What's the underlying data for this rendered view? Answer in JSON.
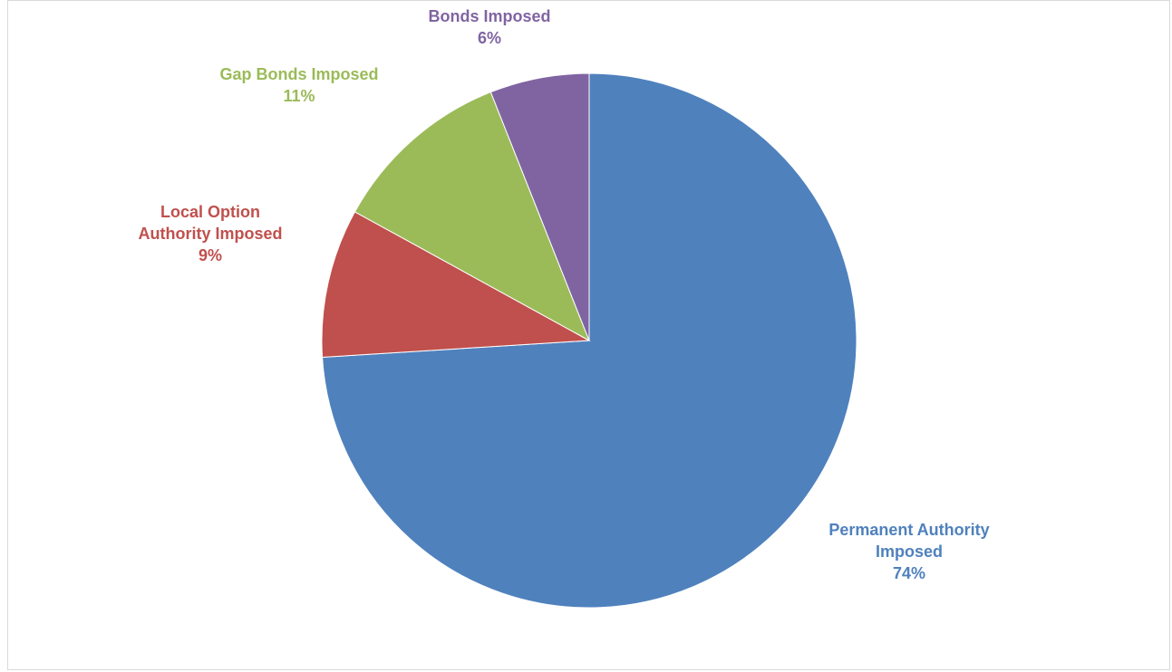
{
  "chart_data": {
    "type": "pie",
    "slices": [
      {
        "name": "Permanent Authority Imposed",
        "label_lines": [
          "Permanent Authority",
          "Imposed"
        ],
        "value": 74,
        "percent_label": "74%",
        "color": "#4F81BD"
      },
      {
        "name": "Local Option Authority Imposed",
        "label_lines": [
          "Local Option",
          "Authority Imposed"
        ],
        "value": 9,
        "percent_label": "9%",
        "color": "#C0504D"
      },
      {
        "name": "Gap Bonds Imposed",
        "label_lines": [
          "Gap Bonds Imposed"
        ],
        "value": 11,
        "percent_label": "11%",
        "color": "#9BBB59"
      },
      {
        "name": "Bonds Imposed",
        "label_lines": [
          "Bonds Imposed"
        ],
        "value": 6,
        "percent_label": "6%",
        "color": "#8064A2"
      }
    ],
    "start_angle_deg": 0,
    "direction": "clockwise",
    "legend": "none",
    "data_labels": "outside"
  }
}
